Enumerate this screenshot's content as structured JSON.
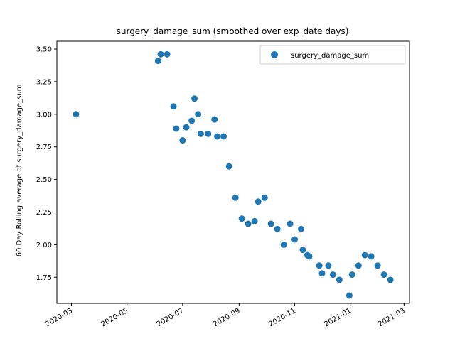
{
  "chart_data": {
    "type": "scatter",
    "title": "surgery_damage_sum (smoothed over exp_date days)",
    "xlabel": "",
    "ylabel": "60 Day Rolling average of surgery_damage_sum",
    "x_axis_type": "date",
    "xlim": [
      "2020-02-14",
      "2021-03-07"
    ],
    "ylim": [
      1.55,
      3.56
    ],
    "x_ticks": [
      "2020-03",
      "2020-05",
      "2020-07",
      "2020-09",
      "2020-11",
      "2021-01",
      "2021-03"
    ],
    "y_ticks": [
      1.75,
      2.0,
      2.25,
      2.5,
      2.75,
      3.0,
      3.25,
      3.5
    ],
    "y_tick_labels": [
      "1.75",
      "2.00",
      "2.25",
      "2.50",
      "2.75",
      "3.00",
      "3.25",
      "3.50"
    ],
    "legend_position": "top-right",
    "color": "#1f77b4",
    "series": [
      {
        "name": "surgery_damage_sum",
        "x": [
          "2020-03-06",
          "2020-06-04",
          "2020-06-07",
          "2020-06-14",
          "2020-06-21",
          "2020-06-24",
          "2020-07-01",
          "2020-07-05",
          "2020-07-11",
          "2020-07-14",
          "2020-07-18",
          "2020-07-21",
          "2020-07-29",
          "2020-08-05",
          "2020-08-08",
          "2020-08-15",
          "2020-08-21",
          "2020-08-28",
          "2020-09-04",
          "2020-09-11",
          "2020-09-18",
          "2020-09-22",
          "2020-09-29",
          "2020-10-06",
          "2020-10-13",
          "2020-10-20",
          "2020-10-27",
          "2020-11-01",
          "2020-11-08",
          "2020-11-10",
          "2020-11-15",
          "2020-11-17",
          "2020-11-28",
          "2020-12-01",
          "2020-12-08",
          "2020-12-13",
          "2020-12-20",
          "2020-12-31",
          "2021-01-03",
          "2021-01-10",
          "2021-01-17",
          "2021-01-24",
          "2021-01-31",
          "2021-02-07",
          "2021-02-14"
        ],
        "y": [
          3.0,
          3.41,
          3.46,
          3.46,
          3.06,
          2.89,
          2.8,
          2.9,
          2.95,
          3.12,
          3.0,
          2.85,
          2.85,
          2.96,
          2.83,
          2.83,
          2.6,
          2.36,
          2.2,
          2.16,
          2.18,
          2.33,
          2.36,
          2.16,
          2.12,
          2.0,
          2.16,
          2.04,
          2.12,
          1.96,
          1.92,
          1.91,
          1.84,
          1.78,
          1.84,
          1.77,
          1.73,
          1.61,
          1.77,
          1.84,
          1.92,
          1.91,
          1.84,
          1.77,
          1.73
        ]
      }
    ]
  }
}
